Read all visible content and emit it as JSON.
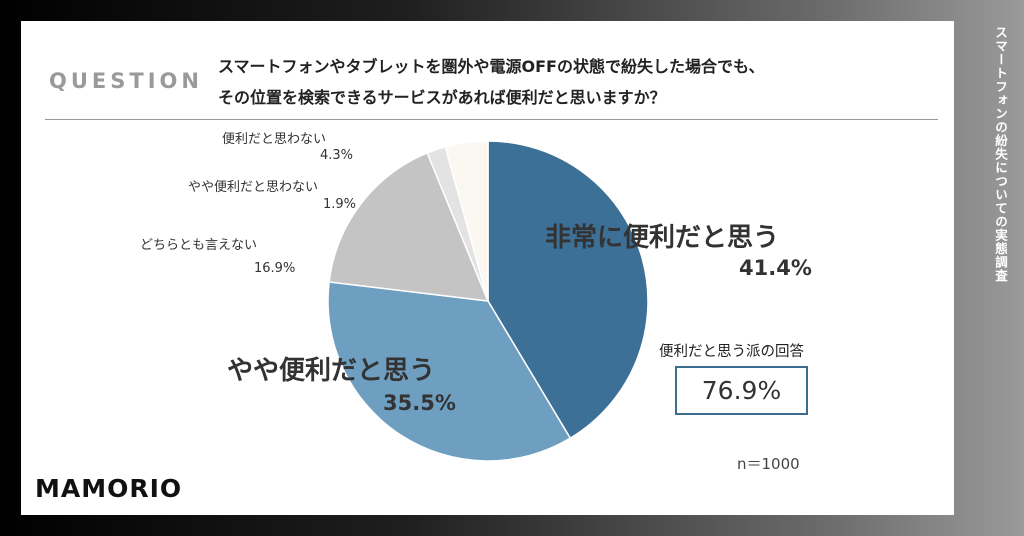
{
  "header": {
    "label": "QUESTION",
    "question_lines": [
      "スマートフォンやタブレットを圏外や電源OFFの状態で紛失した場合でも、",
      "その位置を検索できるサービスがあれば便利だと思いますか？"
    ]
  },
  "chart_data": {
    "type": "pie",
    "slices": [
      {
        "name": "非常に便利だと思う",
        "value": 41.4,
        "value_label": "41.4%",
        "color": "#3d7096"
      },
      {
        "name": "やや便利だと思う",
        "value": 35.5,
        "value_label": "35.5%",
        "color": "#6f9fc0"
      },
      {
        "name": "どちらとも言えない",
        "value": 16.9,
        "value_label": "16.9%",
        "color": "#c4c4c4"
      },
      {
        "name": "やや便利だと思わない",
        "value": 1.9,
        "value_label": "1.9%",
        "color": "#e3e3e3"
      },
      {
        "name": "便利だと思わない",
        "value": 4.3,
        "value_label": "4.3%",
        "color": "#fbf8f1"
      }
    ]
  },
  "summary": {
    "title": "便利だと思う派の回答",
    "value": "76.9%",
    "sample": "n＝1000"
  },
  "brand": {
    "logo": "MAMORIO",
    "side_title": "スマートフォンの紛失についての実態調査"
  }
}
